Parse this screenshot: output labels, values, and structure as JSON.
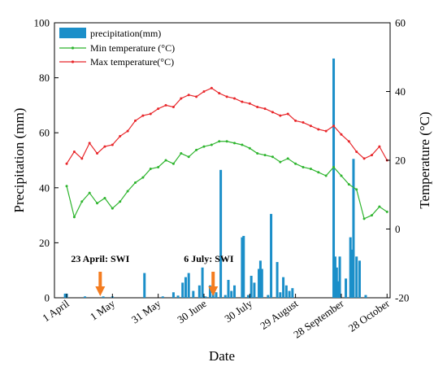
{
  "chart_data": {
    "type": "bar+line",
    "xlabel": "Date",
    "ylabel_left": "Precipitation (mm)",
    "ylabel_right": "Temperature (°C)",
    "ylim_left": [
      0,
      100
    ],
    "ylim_right": [
      -20,
      60
    ],
    "yticks_left": [
      0,
      20,
      40,
      60,
      80,
      100
    ],
    "yticks_right": [
      -20,
      0,
      20,
      40,
      60
    ],
    "xlim_day": [
      -8,
      212
    ],
    "xticks": [
      {
        "day": 0,
        "label": "1 April"
      },
      {
        "day": 30,
        "label": "1 May"
      },
      {
        "day": 60,
        "label": "31 May"
      },
      {
        "day": 90,
        "label": "30 June"
      },
      {
        "day": 120,
        "label": "30 July"
      },
      {
        "day": 150,
        "label": "29 August"
      },
      {
        "day": 180,
        "label": "28 September"
      },
      {
        "day": 210,
        "label": "28 October"
      }
    ],
    "legend": {
      "position": "top-left",
      "entries": [
        "precipitation(mm)",
        "Min temperature (°C)",
        "Max temperature(°C)"
      ]
    },
    "colors": {
      "precipitation": "#1b8fc9",
      "min": "#2fb52f",
      "max": "#e8262a",
      "arrow": "#f47c20"
    },
    "precipitation_bars": [
      [
        -1,
        1.5
      ],
      [
        0,
        1.5
      ],
      [
        12,
        0.5
      ],
      [
        24,
        0.5
      ],
      [
        30,
        0.5
      ],
      [
        51,
        9
      ],
      [
        63,
        0.5
      ],
      [
        70,
        2
      ],
      [
        73,
        0.8
      ],
      [
        76,
        5.5
      ],
      [
        78,
        7.5
      ],
      [
        80,
        9
      ],
      [
        83,
        2.5
      ],
      [
        87,
        4.5
      ],
      [
        89,
        11
      ],
      [
        91,
        0.5
      ],
      [
        94,
        4.5
      ],
      [
        96,
        1.5
      ],
      [
        98,
        2
      ],
      [
        101,
        46.5
      ],
      [
        104,
        1
      ],
      [
        106,
        6.5
      ],
      [
        108,
        2.5
      ],
      [
        110,
        4.5
      ],
      [
        115,
        22
      ],
      [
        116,
        22.5
      ],
      [
        119,
        1
      ],
      [
        121,
        8
      ],
      [
        123,
        5.5
      ],
      [
        126,
        10.5
      ],
      [
        127,
        13.5
      ],
      [
        128,
        10.5
      ],
      [
        132,
        1
      ],
      [
        134,
        30.5
      ],
      [
        138,
        13
      ],
      [
        140,
        2
      ],
      [
        142,
        7.5
      ],
      [
        144,
        4.5
      ],
      [
        146,
        2.5
      ],
      [
        148,
        3.5
      ],
      [
        175,
        87
      ],
      [
        176,
        15
      ],
      [
        177,
        11
      ],
      [
        178,
        6
      ],
      [
        179,
        15
      ],
      [
        183,
        7
      ],
      [
        186,
        22
      ],
      [
        187,
        17.5
      ],
      [
        188,
        50.5
      ],
      [
        190,
        15
      ],
      [
        192,
        13.5
      ],
      [
        196,
        1
      ]
    ],
    "min_temperature_series": [
      [
        0,
        12.5
      ],
      [
        5,
        3.5
      ],
      [
        10,
        8
      ],
      [
        15,
        10.5
      ],
      [
        20,
        7.5
      ],
      [
        25,
        9
      ],
      [
        30,
        6
      ],
      [
        35,
        8
      ],
      [
        40,
        11
      ],
      [
        45,
        13.5
      ],
      [
        50,
        15
      ],
      [
        55,
        17.5
      ],
      [
        60,
        18
      ],
      [
        65,
        20
      ],
      [
        70,
        19
      ],
      [
        75,
        22
      ],
      [
        80,
        21
      ],
      [
        85,
        23
      ],
      [
        90,
        24
      ],
      [
        95,
        24.5
      ],
      [
        100,
        25.5
      ],
      [
        105,
        25.5
      ],
      [
        110,
        25
      ],
      [
        115,
        24.5
      ],
      [
        120,
        23.5
      ],
      [
        125,
        22
      ],
      [
        130,
        21.5
      ],
      [
        135,
        21
      ],
      [
        140,
        19.5
      ],
      [
        145,
        20.5
      ],
      [
        150,
        19
      ],
      [
        155,
        18
      ],
      [
        160,
        17.5
      ],
      [
        165,
        16.5
      ],
      [
        170,
        15.5
      ],
      [
        175,
        18
      ],
      [
        180,
        15.5
      ],
      [
        185,
        13
      ],
      [
        190,
        11.5
      ],
      [
        195,
        3
      ],
      [
        200,
        4
      ],
      [
        205,
        6.5
      ],
      [
        210,
        5
      ]
    ],
    "max_temperature_series": [
      [
        0,
        19
      ],
      [
        5,
        22.5
      ],
      [
        10,
        20.5
      ],
      [
        15,
        25
      ],
      [
        20,
        22
      ],
      [
        25,
        24
      ],
      [
        30,
        24.5
      ],
      [
        35,
        27
      ],
      [
        40,
        28.5
      ],
      [
        45,
        31.5
      ],
      [
        50,
        33
      ],
      [
        55,
        33.5
      ],
      [
        60,
        35
      ],
      [
        65,
        36
      ],
      [
        70,
        35.5
      ],
      [
        75,
        38
      ],
      [
        80,
        39
      ],
      [
        85,
        38.5
      ],
      [
        90,
        40
      ],
      [
        95,
        41
      ],
      [
        100,
        39.5
      ],
      [
        105,
        38.5
      ],
      [
        110,
        38
      ],
      [
        115,
        37
      ],
      [
        120,
        36.5
      ],
      [
        125,
        35.5
      ],
      [
        130,
        35
      ],
      [
        135,
        34
      ],
      [
        140,
        33
      ],
      [
        145,
        33.5
      ],
      [
        150,
        31.5
      ],
      [
        155,
        31
      ],
      [
        160,
        30
      ],
      [
        165,
        29
      ],
      [
        170,
        28.5
      ],
      [
        175,
        30
      ],
      [
        180,
        27.5
      ],
      [
        185,
        25.5
      ],
      [
        190,
        22.5
      ],
      [
        195,
        20.5
      ],
      [
        200,
        21.5
      ],
      [
        205,
        24
      ],
      [
        210,
        20
      ]
    ],
    "annotations": [
      {
        "day": 22,
        "label": "23 April:  SWI"
      },
      {
        "day": 96,
        "label": "6 July:  SWI"
      }
    ]
  }
}
